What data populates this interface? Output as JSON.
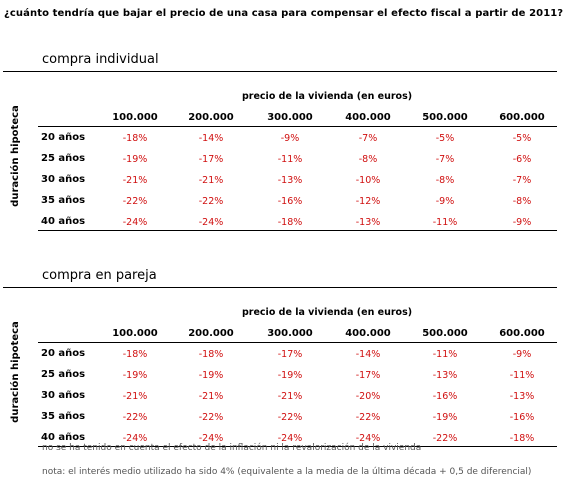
{
  "title": "¿cuánto tendría que bajar el precio de una casa para compensar el efecto fiscal a partir de 2011?",
  "column_header": "precio de la vivienda (en euros)",
  "row_axis_label": "duración hipoteca",
  "columns": [
    "100.000",
    "200.000",
    "300.000",
    "400.000",
    "500.000",
    "600.000"
  ],
  "rows": [
    "20 años",
    "25 años",
    "30 años",
    "35 años",
    "40 años"
  ],
  "accent_color": "#d01010",
  "tables": [
    {
      "name": "compra individual",
      "values": [
        [
          "-18%",
          "-14%",
          "-9%",
          "-7%",
          "-5%",
          "-5%"
        ],
        [
          "-19%",
          "-17%",
          "-11%",
          "-8%",
          "-7%",
          "-6%"
        ],
        [
          "-21%",
          "-21%",
          "-13%",
          "-10%",
          "-8%",
          "-7%"
        ],
        [
          "-22%",
          "-22%",
          "-16%",
          "-12%",
          "-9%",
          "-8%"
        ],
        [
          "-24%",
          "-24%",
          "-18%",
          "-13%",
          "-11%",
          "-9%"
        ]
      ]
    },
    {
      "name": "compra en pareja",
      "values": [
        [
          "-18%",
          "-18%",
          "-17%",
          "-14%",
          "-11%",
          "-9%"
        ],
        [
          "-19%",
          "-19%",
          "-19%",
          "-17%",
          "-13%",
          "-11%"
        ],
        [
          "-21%",
          "-21%",
          "-21%",
          "-20%",
          "-16%",
          "-13%"
        ],
        [
          "-22%",
          "-22%",
          "-22%",
          "-22%",
          "-19%",
          "-16%"
        ],
        [
          "-24%",
          "-24%",
          "-24%",
          "-24%",
          "-22%",
          "-18%"
        ]
      ]
    }
  ],
  "notes": [
    "no se ha tenido en cuenta el efecto de la inflación ni la revalorización de la vivienda",
    "nota: el interés medio utilizado ha sido 4% (equivalente a la media de la última década + 0,5 de diferencial)"
  ]
}
